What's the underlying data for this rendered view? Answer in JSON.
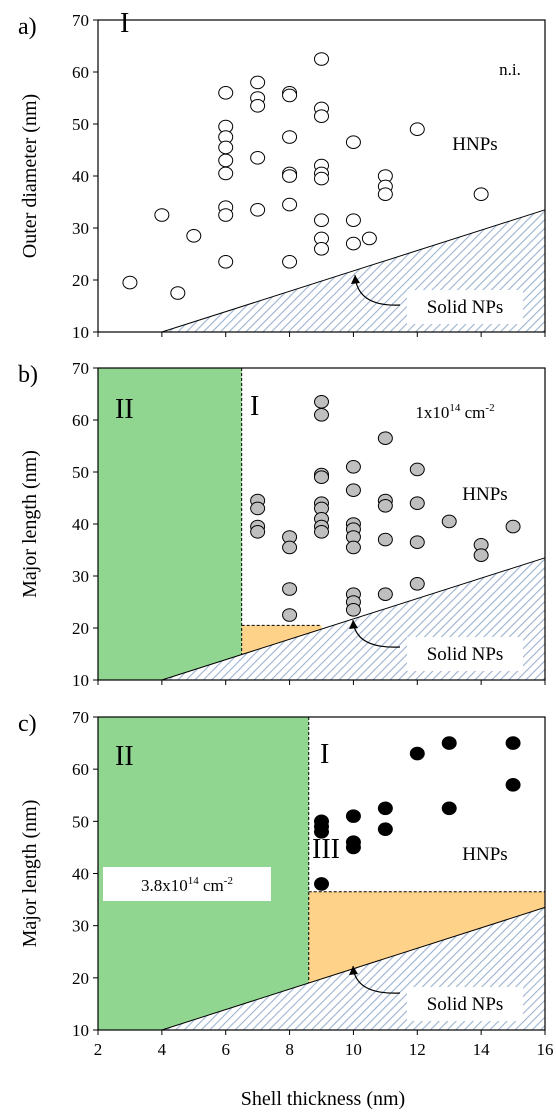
{
  "colors": {
    "open_marker_fill": "#ffffff",
    "gray_marker_fill": "#bfbfbf",
    "solid_marker_fill": "#000000",
    "region_II_fill": "#7ccf7c",
    "region_III_fill": "#ffd28a",
    "solid_np_hatch": "#9db3d1"
  },
  "shared_xlabel": "Shell thickness (nm)",
  "chart_data": [
    {
      "type": "scatter",
      "panel_label": "a)",
      "ylabel": "Outer diameter (nm)",
      "xlim": [
        2,
        16
      ],
      "ylim": [
        10,
        70
      ],
      "x_ticks": [
        2,
        4,
        6,
        8,
        10,
        12,
        14,
        16
      ],
      "y_ticks": [
        10,
        20,
        30,
        40,
        50,
        60,
        70
      ],
      "show_x_tick_labels": false,
      "marker_style": "open",
      "annotations": {
        "region_I": "I",
        "condition": "n.i.",
        "hnps": "HNPs",
        "solid": "Solid NPs"
      },
      "boundary_line": {
        "x": [
          4,
          16
        ],
        "y": [
          10,
          33.5
        ]
      },
      "points": [
        {
          "x": 3,
          "y": 19.5
        },
        {
          "x": 4,
          "y": 32.5
        },
        {
          "x": 4.5,
          "y": 17.5
        },
        {
          "x": 5,
          "y": 28.5
        },
        {
          "x": 6,
          "y": 56
        },
        {
          "x": 6,
          "y": 49.5
        },
        {
          "x": 6,
          "y": 47.5
        },
        {
          "x": 6,
          "y": 45.5
        },
        {
          "x": 6,
          "y": 43
        },
        {
          "x": 6,
          "y": 40.5
        },
        {
          "x": 6,
          "y": 34
        },
        {
          "x": 6,
          "y": 32.5
        },
        {
          "x": 6,
          "y": 23.5
        },
        {
          "x": 7,
          "y": 58
        },
        {
          "x": 7,
          "y": 55
        },
        {
          "x": 7,
          "y": 53.5
        },
        {
          "x": 7,
          "y": 43.5
        },
        {
          "x": 7,
          "y": 33.5
        },
        {
          "x": 8,
          "y": 56
        },
        {
          "x": 8,
          "y": 55.5
        },
        {
          "x": 8,
          "y": 47.5
        },
        {
          "x": 8,
          "y": 40.5
        },
        {
          "x": 8,
          "y": 40
        },
        {
          "x": 8,
          "y": 34.5
        },
        {
          "x": 8,
          "y": 23.5
        },
        {
          "x": 9,
          "y": 62.5
        },
        {
          "x": 9,
          "y": 53
        },
        {
          "x": 9,
          "y": 51.5
        },
        {
          "x": 9,
          "y": 42
        },
        {
          "x": 9,
          "y": 40.5
        },
        {
          "x": 9,
          "y": 39.5
        },
        {
          "x": 9,
          "y": 31.5
        },
        {
          "x": 9,
          "y": 28
        },
        {
          "x": 9,
          "y": 26
        },
        {
          "x": 10,
          "y": 46.5
        },
        {
          "x": 10,
          "y": 31.5
        },
        {
          "x": 10,
          "y": 27
        },
        {
          "x": 10.5,
          "y": 28
        },
        {
          "x": 11,
          "y": 40
        },
        {
          "x": 11,
          "y": 38
        },
        {
          "x": 11,
          "y": 36.5
        },
        {
          "x": 12,
          "y": 49
        },
        {
          "x": 14,
          "y": 36.5
        }
      ]
    },
    {
      "type": "scatter",
      "panel_label": "b)",
      "ylabel": "Major length (nm)",
      "xlim": [
        2,
        16
      ],
      "ylim": [
        10,
        70
      ],
      "x_ticks": [
        2,
        4,
        6,
        8,
        10,
        12,
        14,
        16
      ],
      "y_ticks": [
        10,
        20,
        30,
        40,
        50,
        60,
        70
      ],
      "show_x_tick_labels": false,
      "marker_style": "gray",
      "annotations": {
        "region_I": "I",
        "region_II": "II",
        "condition": "1x10",
        "condition_exp": "14",
        "condition_unit": " cm",
        "condition_unit_exp": "-2",
        "hnps": "HNPs",
        "solid": "Solid NPs"
      },
      "region_II_x": [
        2,
        6.5
      ],
      "region_III": {
        "x": [
          6.5,
          9
        ],
        "y_top": 20.5
      },
      "boundary_line": {
        "x": [
          4,
          16
        ],
        "y": [
          10,
          33.5
        ]
      },
      "points": [
        {
          "x": 7,
          "y": 44.5
        },
        {
          "x": 7,
          "y": 43
        },
        {
          "x": 7,
          "y": 39.5
        },
        {
          "x": 7,
          "y": 38.5
        },
        {
          "x": 8,
          "y": 37.5
        },
        {
          "x": 8,
          "y": 35.5
        },
        {
          "x": 8,
          "y": 27.5
        },
        {
          "x": 8,
          "y": 22.5
        },
        {
          "x": 9,
          "y": 63.5
        },
        {
          "x": 9,
          "y": 61
        },
        {
          "x": 9,
          "y": 49.5
        },
        {
          "x": 9,
          "y": 49
        },
        {
          "x": 9,
          "y": 44
        },
        {
          "x": 9,
          "y": 43
        },
        {
          "x": 9,
          "y": 41
        },
        {
          "x": 9,
          "y": 39.5
        },
        {
          "x": 9,
          "y": 38.5
        },
        {
          "x": 10,
          "y": 51
        },
        {
          "x": 10,
          "y": 46.5
        },
        {
          "x": 10,
          "y": 40
        },
        {
          "x": 10,
          "y": 39
        },
        {
          "x": 10,
          "y": 37.5
        },
        {
          "x": 10,
          "y": 35.5
        },
        {
          "x": 10,
          "y": 26.5
        },
        {
          "x": 10,
          "y": 25
        },
        {
          "x": 10,
          "y": 23.5
        },
        {
          "x": 11,
          "y": 56.5
        },
        {
          "x": 11,
          "y": 44.5
        },
        {
          "x": 11,
          "y": 43.5
        },
        {
          "x": 11,
          "y": 37
        },
        {
          "x": 11,
          "y": 26.5
        },
        {
          "x": 12,
          "y": 50.5
        },
        {
          "x": 12,
          "y": 44
        },
        {
          "x": 12,
          "y": 36.5
        },
        {
          "x": 12,
          "y": 28.5
        },
        {
          "x": 13,
          "y": 40.5
        },
        {
          "x": 14,
          "y": 36
        },
        {
          "x": 14,
          "y": 34
        },
        {
          "x": 15,
          "y": 39.5
        }
      ]
    },
    {
      "type": "scatter",
      "panel_label": "c)",
      "ylabel": "Major length (nm)",
      "xlabel": "Shell thickness (nm)",
      "xlim": [
        2,
        16
      ],
      "ylim": [
        10,
        70
      ],
      "x_ticks": [
        2,
        4,
        6,
        8,
        10,
        12,
        14,
        16
      ],
      "y_ticks": [
        10,
        20,
        30,
        40,
        50,
        60,
        70
      ],
      "show_x_tick_labels": true,
      "marker_style": "solid",
      "annotations": {
        "region_I": "I",
        "region_II": "II",
        "region_III": "III",
        "condition": "3.8x10",
        "condition_exp": "14",
        "condition_unit": " cm",
        "condition_unit_exp": "-2",
        "hnps": "HNPs",
        "solid": "Solid NPs"
      },
      "region_II_x": [
        2,
        8.6
      ],
      "region_III": {
        "x": [
          8.6,
          16
        ],
        "y_top": 36.5
      },
      "boundary_line": {
        "x": [
          4,
          16
        ],
        "y": [
          10,
          33.5
        ]
      },
      "points": [
        {
          "x": 9,
          "y": 50
        },
        {
          "x": 9,
          "y": 49
        },
        {
          "x": 9,
          "y": 48
        },
        {
          "x": 9,
          "y": 38
        },
        {
          "x": 10,
          "y": 51
        },
        {
          "x": 10,
          "y": 46
        },
        {
          "x": 10,
          "y": 45
        },
        {
          "x": 11,
          "y": 52.5
        },
        {
          "x": 11,
          "y": 48.5
        },
        {
          "x": 12,
          "y": 63
        },
        {
          "x": 13,
          "y": 65
        },
        {
          "x": 13,
          "y": 52.5
        },
        {
          "x": 15,
          "y": 65
        },
        {
          "x": 15,
          "y": 57
        }
      ]
    }
  ]
}
